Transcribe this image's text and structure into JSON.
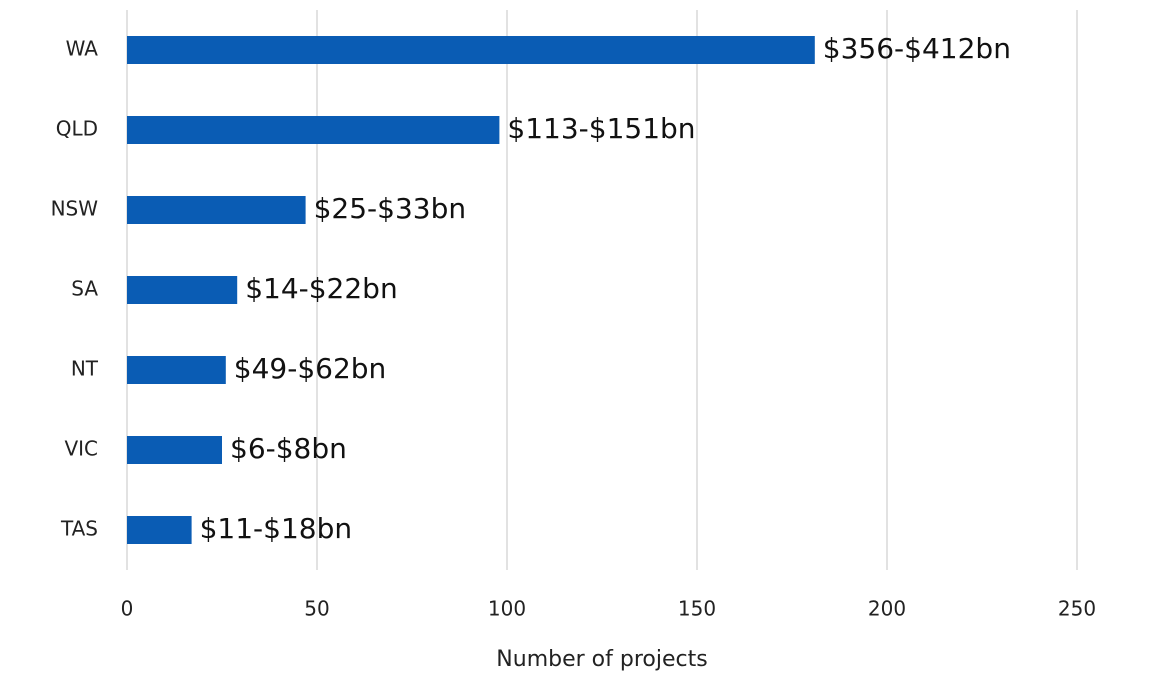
{
  "chart_data": {
    "type": "barh",
    "categories": [
      "WA",
      "QLD",
      "NSW",
      "SA",
      "NT",
      "VIC",
      "TAS"
    ],
    "values": [
      181,
      98,
      47,
      29,
      26,
      25,
      17
    ],
    "bar_labels": [
      "$356-$412bn",
      "$113-$151bn",
      "$25-$33bn",
      "$14-$22bn",
      "$49-$62bn",
      "$6-$8bn",
      "$11-$18bn"
    ],
    "color": "#0a5cb4",
    "xlabel": "Number of projects",
    "xlim": [
      0,
      250
    ],
    "xticks": [
      0,
      50,
      100,
      150,
      200,
      250
    ],
    "grid": true
  }
}
